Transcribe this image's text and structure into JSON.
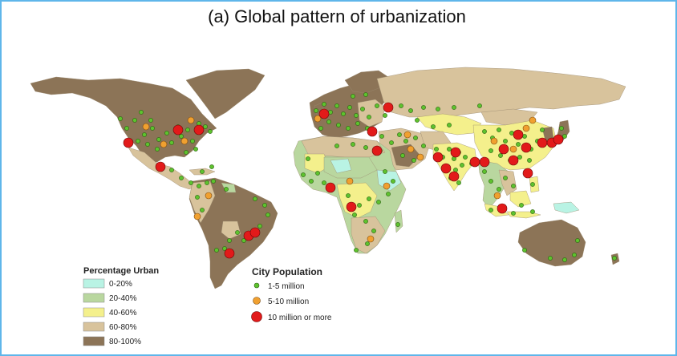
{
  "title": "(a) Global pattern of urbanization",
  "legend_urban": {
    "title": "Percentage Urban",
    "items": [
      {
        "label": "0-20%",
        "color": "#b9f3e4"
      },
      {
        "label": "20-40%",
        "color": "#b9d79f"
      },
      {
        "label": "40-60%",
        "color": "#f4f08c"
      },
      {
        "label": "60-80%",
        "color": "#d8c39c"
      },
      {
        "label": "80-100%",
        "color": "#8c7457"
      }
    ]
  },
  "legend_city": {
    "title": "City Population",
    "items": [
      {
        "label": "1-5 million",
        "color": "#5ec22e"
      },
      {
        "label": "5-10 million",
        "color": "#f0a030"
      },
      {
        "label": "10 million or more",
        "color": "#e21a1a"
      }
    ]
  },
  "colors": {
    "frame": "#5fb6ea",
    "ocean": "#ffffff",
    "dark_land": "#8c7457",
    "tan_land": "#d8c39c",
    "yellow_land": "#f4f08c",
    "green_land": "#b9d79f",
    "cyan_land": "#b9f3e4"
  }
}
